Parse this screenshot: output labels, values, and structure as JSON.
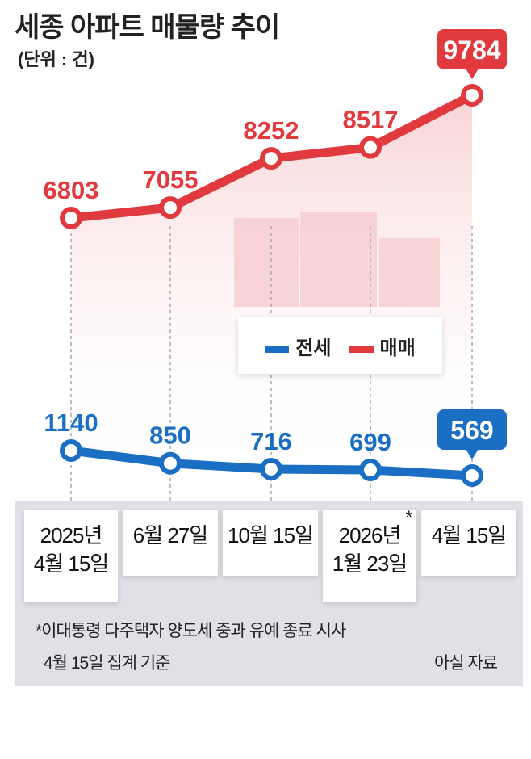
{
  "chart_data": {
    "type": "line",
    "title": "세종 아파트 매물량 추이",
    "unit": "(단위 : 건)",
    "categories": [
      [
        "2025년",
        "4월 15일"
      ],
      [
        "6월 27일"
      ],
      [
        "10월 15일"
      ],
      [
        "2026년",
        "1월 23일"
      ],
      [
        "4월 15일"
      ]
    ],
    "annotated_category": 3,
    "annotation_mark": "*",
    "series": [
      {
        "name": "전세",
        "color": "#1a6fc4",
        "values": [
          1140,
          850,
          716,
          699,
          569
        ]
      },
      {
        "name": "매매",
        "color": "#e0393e",
        "values": [
          6803,
          7055,
          8252,
          8517,
          9784
        ]
      }
    ],
    "legend_position": "center",
    "footnote": "*이대통령 다주택자 양도세 중과 유예 종료 시사",
    "basis": "4월 15일 집계 기준",
    "source": "아실 자료"
  }
}
